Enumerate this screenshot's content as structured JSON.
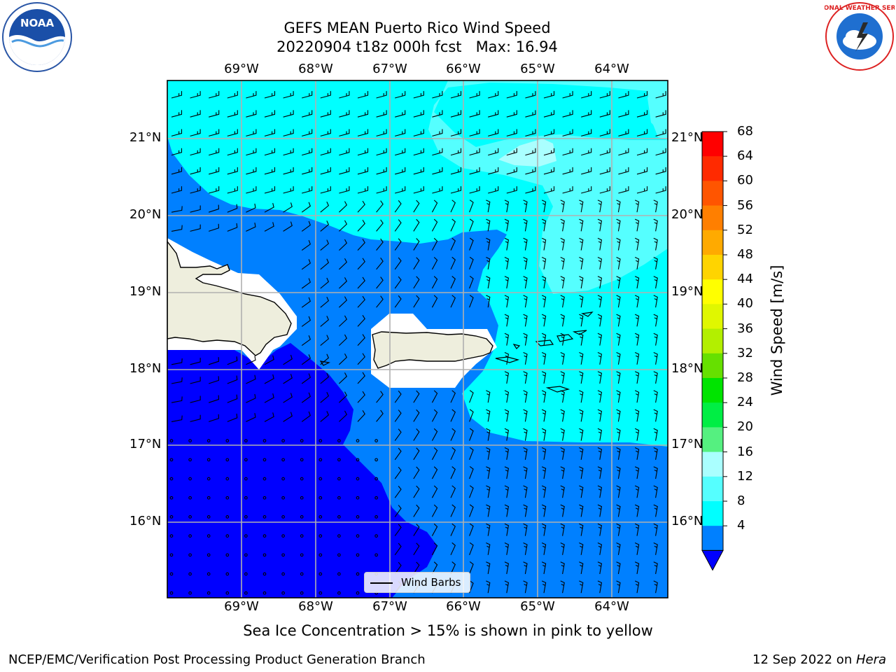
{
  "title_line1": "GEFS MEAN Puerto Rico Wind Speed",
  "title_line2": "20220904 t18z 000h fcst   Max: 16.94",
  "lon_labels": [
    "69°W",
    "68°W",
    "67°W",
    "66°W",
    "65°W",
    "64°W"
  ],
  "lat_labels": [
    "21°N",
    "20°N",
    "19°N",
    "18°N",
    "17°N",
    "16°N"
  ],
  "colorbar": {
    "title": "Wind Speed [m/s]",
    "ticks": [
      "68",
      "64",
      "60",
      "56",
      "52",
      "48",
      "44",
      "40",
      "36",
      "32",
      "28",
      "24",
      "20",
      "16",
      "12",
      "8",
      "4"
    ],
    "colors": [
      "#ff0000",
      "#ff2a00",
      "#ff5500",
      "#ff7f00",
      "#ffaa00",
      "#ffd400",
      "#ffff00",
      "#e0f700",
      "#b3ef00",
      "#66e000",
      "#00e400",
      "#00ee44",
      "#55f080",
      "#aaffff",
      "#55ffff",
      "#00ffff",
      "#0080ff"
    ],
    "extend_color": "#0000ff"
  },
  "field_colors": {
    "4-8": "#0000ff",
    "8-12": "#0080ff",
    "12-16": "#00ffff",
    "16-20": "#55ffff",
    "land": "#eeeedd"
  },
  "legend_label": "Wind Barbs",
  "note": "Sea Ice Concentration > 15% is shown in pink to yellow",
  "footer_left": "NCEP/EMC/Verification Post Processing Product Generation Branch",
  "footer_date": "12 Sep 2022 on ",
  "footer_machine": "Hera",
  "logos": {
    "left": "NOAA",
    "right": "NATIONAL WEATHER SERVICE"
  }
}
